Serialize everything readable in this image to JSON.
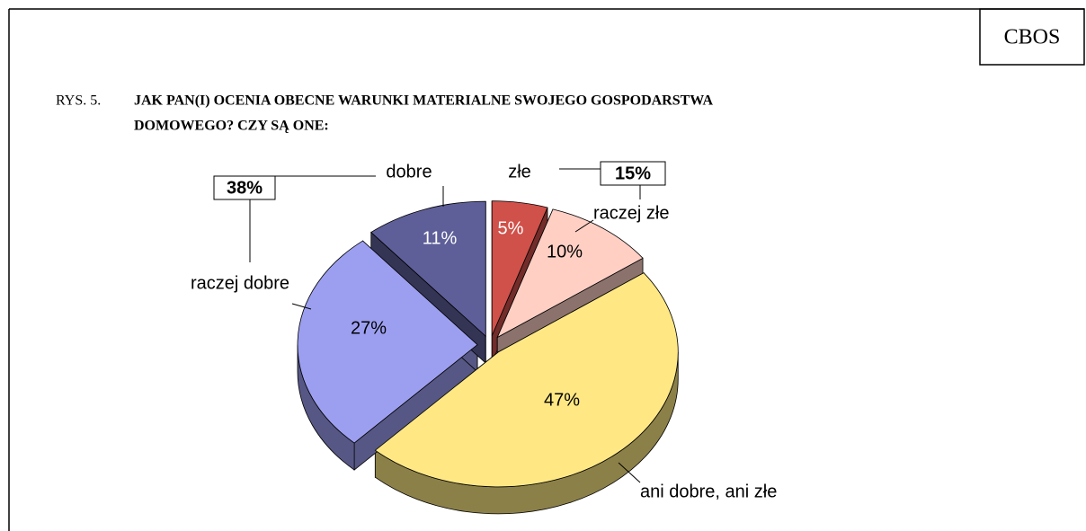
{
  "chart_data": {
    "type": "pie",
    "source": "CBOS",
    "figure_label": "RYS. 5.",
    "title": [
      "JAK PAN(I) OCENIA OBECNE WARUNKI MATERIALNE SWOJEGO GOSPODARSTWA",
      "DOMOWEGO? CZY SĄ ONE:"
    ],
    "categories": [
      "złe",
      "raczej złe",
      "ani dobre, ani złe",
      "raczej dobre",
      "dobre"
    ],
    "values": [
      5,
      10,
      47,
      27,
      11
    ],
    "value_labels": [
      "5%",
      "10%",
      "47%",
      "27%",
      "11%"
    ],
    "colors": [
      "#d0504a",
      "#ffcfc4",
      "#ffe884",
      "#9c9ff0",
      "#5e5f99"
    ],
    "group_labels": [
      "15%",
      "38%"
    ]
  }
}
